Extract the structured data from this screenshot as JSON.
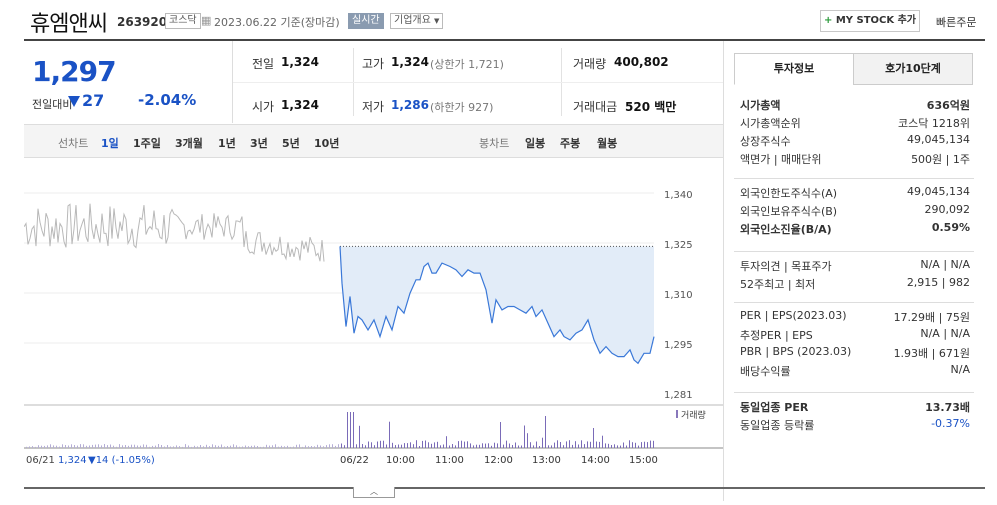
{
  "header": {
    "title": "휴엠앤씨",
    "code": "263920",
    "market": "코스닥",
    "date": "2023.06.22 기준(장마감)",
    "realtime": "실시간",
    "corp_info": "기업개요",
    "mystock": "MY STOCK 추가",
    "quick_order": "빠른주문"
  },
  "price": {
    "current": "1,297",
    "change_label": "전일대비",
    "change": "27",
    "change_pct": "-2.04%"
  },
  "stats": {
    "prev_label": "전일",
    "prev": "1,324",
    "high_label": "고가",
    "high": "1,324",
    "upper_limit": "(상한가 1,721)",
    "volume_label": "거래량",
    "volume": "400,802",
    "open_label": "시가",
    "open": "1,324",
    "low_label": "저가",
    "low": "1,286",
    "lower_limit": "(하한가 927)",
    "amount_label": "거래대금",
    "amount": "520 백만"
  },
  "range": {
    "line_label": "선차트",
    "periods": [
      "1일",
      "1주일",
      "3개월",
      "1년",
      "3년",
      "5년",
      "10년"
    ],
    "candle_label": "봉차트",
    "candles": [
      "일봉",
      "주봉",
      "월봉"
    ]
  },
  "chart_data": {
    "type": "line",
    "yticks": [
      "1,340",
      "1,325",
      "1,310",
      "1,295",
      "1,281"
    ],
    "xticks": [
      "06/22",
      "10:00",
      "11:00",
      "12:00",
      "13:00",
      "14:00",
      "15:00"
    ],
    "ylim": [
      1281,
      1340
    ],
    "volume_label": "거래량",
    "prev_close": 1324,
    "footer_date": "06/21",
    "footer_price": "1,324",
    "footer_change": "▼14 (-1.05%)"
  },
  "right": {
    "tab1": "투자정보",
    "tab2": "호가10단계",
    "g1": [
      {
        "k": "시가총액",
        "v": "636억원"
      },
      {
        "k": "시가총액순위",
        "v": "코스닥 1218위"
      },
      {
        "k": "상장주식수",
        "v": "49,045,134"
      },
      {
        "k": "액면가 | 매매단위",
        "v": "500원 | 1주"
      }
    ],
    "g2": [
      {
        "k": "외국인한도주식수(A)",
        "v": "49,045,134"
      },
      {
        "k": "외국인보유주식수(B)",
        "v": "290,092"
      },
      {
        "k": "외국인소진율(B/A)",
        "v": "0.59%"
      }
    ],
    "g3": [
      {
        "k": "투자의견 | 목표주가",
        "v": "N/A | N/A"
      },
      {
        "k": "52주최고 | 최저",
        "v": "2,915 | 982"
      }
    ],
    "g4": [
      {
        "k": "PER | EPS(2023.03)",
        "v": "17.29배 | 75원"
      },
      {
        "k": "추정PER | EPS",
        "v": "N/A | N/A"
      },
      {
        "k": "PBR | BPS (2023.03)",
        "v": "1.93배 | 671원"
      },
      {
        "k": "배당수익률",
        "v": "N/A"
      }
    ],
    "g5": [
      {
        "k": "동일업종 PER",
        "v": "13.73배"
      },
      {
        "k": "동일업종 등락률",
        "v": "-0.37%"
      }
    ]
  },
  "colors": {
    "down": "#1a52c5",
    "fill": "#e2ecf8",
    "line": "#3a78d8",
    "prev_line": "#b8b8b8",
    "volume": "#8877bb"
  }
}
